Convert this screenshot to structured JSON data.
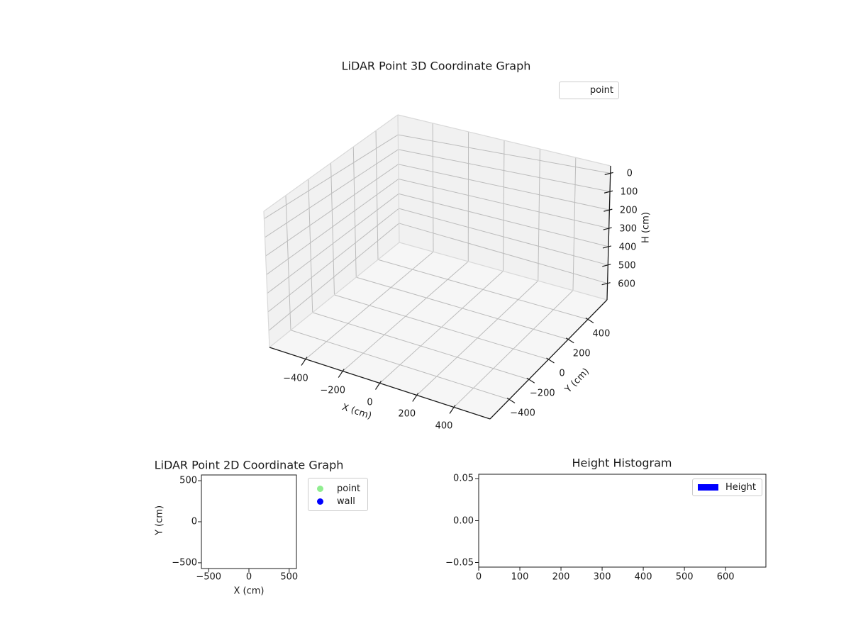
{
  "figure": {
    "background": "#ffffff",
    "text_color": "#1a1a1a"
  },
  "chart_data": [
    {
      "type": "scatter3d",
      "title": "LiDAR Point 3D Coordinate Graph",
      "xlabel": "X (cm)",
      "ylabel": "Y (cm)",
      "zlabel": "H (cm)",
      "xlim": [
        -595,
        595
      ],
      "ylim": [
        -595,
        595
      ],
      "zlim": [
        -40,
        690
      ],
      "zaxis_inverted": true,
      "grid": true,
      "xticks": {
        "values": [
          -400,
          -200,
          0,
          200,
          400
        ],
        "labels": [
          "−400",
          "−200",
          "0",
          "200",
          "400"
        ]
      },
      "yticks": {
        "values": [
          400,
          200,
          0,
          -200,
          -400
        ],
        "labels": [
          "400",
          "200",
          "0",
          "−200",
          "−400"
        ]
      },
      "zticks": {
        "values": [
          0,
          100,
          200,
          300,
          400,
          500,
          600
        ],
        "labels": [
          "0",
          "100",
          "200",
          "300",
          "400",
          "500",
          "600"
        ]
      },
      "legend": {
        "position": "upper right",
        "entries": [
          {
            "label": "point",
            "marker": "none"
          }
        ]
      },
      "series": [
        {
          "name": "point",
          "points": []
        }
      ]
    },
    {
      "type": "scatter",
      "title": "LiDAR Point 2D Coordinate Graph",
      "xlabel": "X (cm)",
      "ylabel": "Y (cm)",
      "xlim": [
        -590,
        590
      ],
      "ylim": [
        -570,
        570
      ],
      "grid": false,
      "xticks": {
        "values": [
          -500,
          0,
          500
        ],
        "labels": [
          "−500",
          "0",
          "500"
        ]
      },
      "yticks": {
        "values": [
          500,
          0,
          -500
        ],
        "labels": [
          "500",
          "0",
          "−500"
        ]
      },
      "legend": {
        "position": "right of axes",
        "entries": [
          {
            "label": "point",
            "marker": "circle",
            "color": "#90EE90"
          },
          {
            "label": "wall",
            "marker": "circle",
            "color": "#0000FF"
          }
        ]
      },
      "series": [
        {
          "name": "point",
          "color": "#90EE90",
          "points": []
        },
        {
          "name": "wall",
          "color": "#0000FF",
          "points": []
        }
      ]
    },
    {
      "type": "histogram",
      "title": "Height Histogram",
      "xlabel": "",
      "ylabel": "",
      "xlim": [
        0,
        698
      ],
      "ylim": [
        -0.0555,
        0.0555
      ],
      "grid": false,
      "xticks": {
        "values": [
          0,
          100,
          200,
          300,
          400,
          500,
          600
        ],
        "labels": [
          "0",
          "100",
          "200",
          "300",
          "400",
          "500",
          "600"
        ]
      },
      "yticks": {
        "values": [
          0.05,
          0,
          -0.05
        ],
        "labels": [
          "0.05",
          "0.00",
          "−0.05"
        ]
      },
      "legend": {
        "position": "upper right",
        "entries": [
          {
            "label": "Height",
            "marker": "rect",
            "color": "#0000FF"
          }
        ]
      },
      "series": [
        {
          "name": "Height",
          "color": "#0000FF",
          "values": []
        }
      ]
    }
  ]
}
